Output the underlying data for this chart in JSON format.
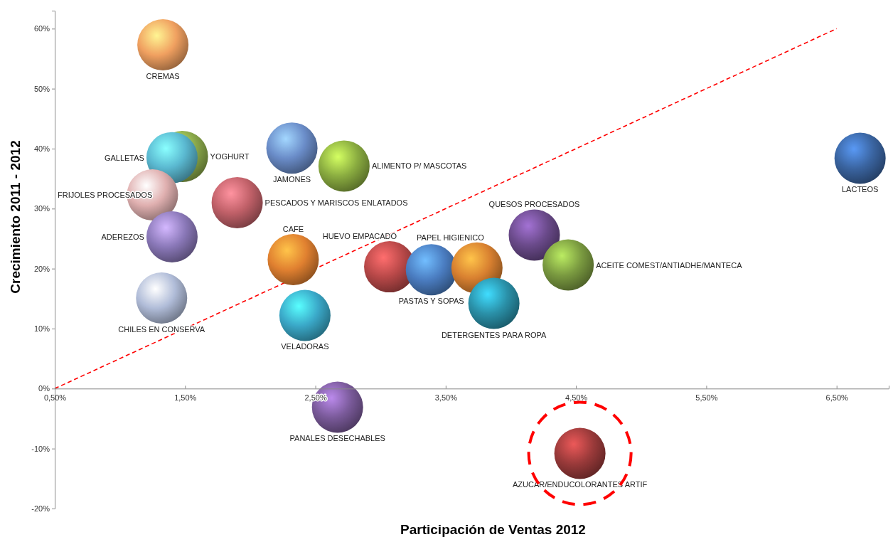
{
  "chart_data": {
    "type": "bubble",
    "xlabel": "Participación de Ventas 2012",
    "ylabel": "Crecimiento 2011 - 2012",
    "xlim": [
      0.5,
      6.9
    ],
    "ylim": [
      -20,
      63
    ],
    "xticks": [
      {
        "value": 0.5,
        "label": "0,50%"
      },
      {
        "value": 1.5,
        "label": "1,50%"
      },
      {
        "value": 2.5,
        "label": "2,50%"
      },
      {
        "value": 3.5,
        "label": "3,50%"
      },
      {
        "value": 4.5,
        "label": "4,50%"
      },
      {
        "value": 5.5,
        "label": "5,50%"
      },
      {
        "value": 6.5,
        "label": "6,50%"
      }
    ],
    "yticks": [
      {
        "value": -20,
        "label": "-20%"
      },
      {
        "value": -10,
        "label": "-10%"
      },
      {
        "value": 0,
        "label": "0%"
      },
      {
        "value": 10,
        "label": "10%"
      },
      {
        "value": 20,
        "label": "20%"
      },
      {
        "value": 30,
        "label": "30%"
      },
      {
        "value": 40,
        "label": "40%"
      },
      {
        "value": 50,
        "label": "50%"
      },
      {
        "value": 60,
        "label": "60%"
      }
    ],
    "grid": false,
    "series": [
      {
        "type": "line",
        "color": "#ff0000",
        "line_style": "dashed",
        "x": [
          0.5,
          6.5
        ],
        "values": [
          0,
          60
        ]
      },
      {
        "name": "CREMAS",
        "color": "#f0a060",
        "x": [
          1.33
        ],
        "values": [
          57.3
        ],
        "sizes": [
          1
        ]
      },
      {
        "name": "YOGHURT",
        "color": "#8aa84a",
        "x": [
          1.48
        ],
        "values": [
          38.7
        ],
        "sizes": [
          1
        ]
      },
      {
        "name": "GALLETAS",
        "color": "#5ab8d0",
        "x": [
          1.4
        ],
        "values": [
          38.5
        ],
        "sizes": [
          1
        ]
      },
      {
        "name": "FRIJOLES PROCESADOS",
        "color": "#e0b0b0",
        "x": [
          1.25
        ],
        "values": [
          32.3
        ],
        "sizes": [
          1
        ]
      },
      {
        "name": "ADEREZOS",
        "color": "#8a78b8",
        "x": [
          1.4
        ],
        "values": [
          25.3
        ],
        "sizes": [
          1
        ]
      },
      {
        "name": "CHILES EN CONSERVA",
        "color": "#b0bcd8",
        "x": [
          1.32
        ],
        "values": [
          15.1
        ],
        "sizes": [
          1
        ]
      },
      {
        "name": "PESCADOS Y MARISCOS ENLATADOS",
        "color": "#c06068",
        "x": [
          1.9
        ],
        "values": [
          31.0
        ],
        "sizes": [
          1
        ]
      },
      {
        "name": "JAMONES",
        "color": "#6a8cc8",
        "x": [
          2.32
        ],
        "values": [
          40.1
        ],
        "sizes": [
          1
        ]
      },
      {
        "name": "ALIMENTO P/ MASCOTAS",
        "color": "#8aac40",
        "x": [
          2.72
        ],
        "values": [
          37.1
        ],
        "sizes": [
          1
        ]
      },
      {
        "name": "CAFE",
        "color": "#e08030",
        "x": [
          2.33
        ],
        "values": [
          21.5
        ],
        "sizes": [
          1
        ]
      },
      {
        "name": "VELADORAS",
        "color": "#3aa8c8",
        "x": [
          2.42
        ],
        "values": [
          12.2
        ],
        "sizes": [
          1
        ]
      },
      {
        "name": "PANALES DESECHABLES",
        "color": "#7a5a9a",
        "x": [
          2.67
        ],
        "values": [
          -3.1
        ],
        "sizes": [
          1
        ]
      },
      {
        "name": "HUEVO EMPACADO",
        "color": "#b84848",
        "x": [
          3.07
        ],
        "values": [
          20.3
        ],
        "sizes": [
          1
        ]
      },
      {
        "name": "PASTAS Y SOPAS",
        "color": "#4a7cc0",
        "x": [
          3.39
        ],
        "values": [
          19.8
        ],
        "sizes": [
          1
        ]
      },
      {
        "name": "PAPEL HIGIENICO",
        "color": "#d88030",
        "x": [
          3.74
        ],
        "values": [
          20.1
        ],
        "sizes": [
          1
        ]
      },
      {
        "name": "DETERGENTES PARA ROPA",
        "color": "#2a90a8",
        "x": [
          3.87
        ],
        "values": [
          14.2
        ],
        "sizes": [
          1
        ]
      },
      {
        "name": "QUESOS PROCESADOS",
        "color": "#6a4a8a",
        "x": [
          4.18
        ],
        "values": [
          25.6
        ],
        "sizes": [
          1
        ]
      },
      {
        "name": "ACEITE COMEST/ANTIADHE/MANTECA",
        "color": "#7a9a40",
        "x": [
          4.44
        ],
        "values": [
          20.6
        ],
        "sizes": [
          1
        ]
      },
      {
        "name": "AZUCAR/ENDUCOLORANTES ARTIF",
        "color": "#9a3a3a",
        "x": [
          4.53
        ],
        "values": [
          -10.8
        ],
        "sizes": [
          1
        ]
      },
      {
        "name": "LACTEOS",
        "color": "#3a64a0",
        "x": [
          6.68
        ],
        "values": [
          38.4
        ],
        "sizes": [
          1
        ]
      }
    ]
  }
}
